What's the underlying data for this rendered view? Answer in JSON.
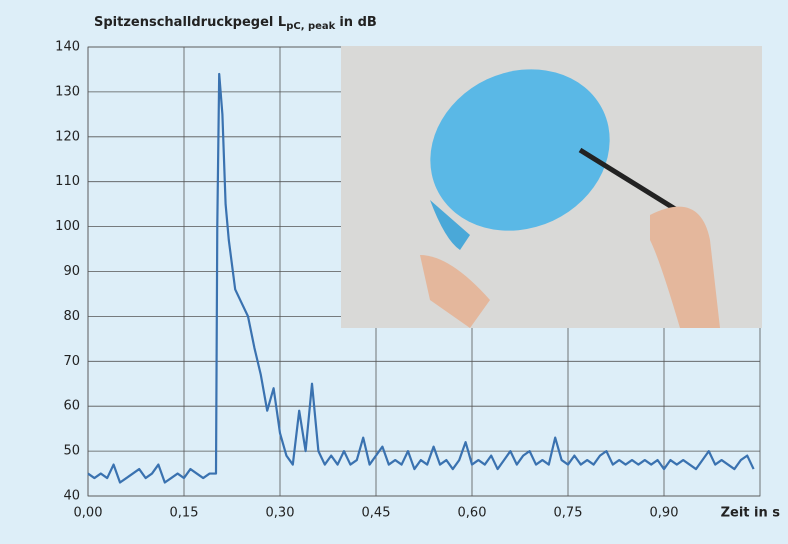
{
  "chart_data": {
    "type": "line",
    "ylabel": {
      "main": "Spitzenschalldruckpegel L",
      "sub": "pC, peak",
      "unit": "in dB"
    },
    "xlabel": "Zeit in s",
    "x": [
      0,
      0.01,
      0.02,
      0.03,
      0.04,
      0.05,
      0.06,
      0.07,
      0.08,
      0.09,
      0.1,
      0.11,
      0.12,
      0.13,
      0.14,
      0.15,
      0.16,
      0.17,
      0.18,
      0.19,
      0.2,
      0.202,
      0.205,
      0.21,
      0.215,
      0.22,
      0.23,
      0.24,
      0.25,
      0.26,
      0.27,
      0.28,
      0.29,
      0.3,
      0.31,
      0.32,
      0.33,
      0.34,
      0.35,
      0.36,
      0.37,
      0.38,
      0.39,
      0.4,
      0.41,
      0.42,
      0.43,
      0.44,
      0.45,
      0.46,
      0.47,
      0.48,
      0.49,
      0.5,
      0.51,
      0.52,
      0.53,
      0.54,
      0.55,
      0.56,
      0.57,
      0.58,
      0.59,
      0.6,
      0.61,
      0.62,
      0.63,
      0.64,
      0.65,
      0.66,
      0.67,
      0.68,
      0.69,
      0.7,
      0.71,
      0.72,
      0.73,
      0.74,
      0.75,
      0.76,
      0.77,
      0.78,
      0.79,
      0.8,
      0.81,
      0.82,
      0.83,
      0.84,
      0.85,
      0.86,
      0.87,
      0.88,
      0.89,
      0.9,
      0.91,
      0.92,
      0.93,
      0.94,
      0.95,
      0.96,
      0.97,
      0.98,
      0.99,
      1.0,
      1.01,
      1.02,
      1.03,
      1.04
    ],
    "series": [
      {
        "color": "#3a72b0",
        "values": [
          45,
          44,
          45,
          44,
          47,
          43,
          44,
          45,
          46,
          44,
          45,
          47,
          43,
          44,
          45,
          44,
          46,
          45,
          44,
          45,
          45,
          100,
          134,
          125,
          105,
          97,
          86,
          83,
          80,
          73,
          67,
          59,
          64,
          54,
          49,
          47,
          59,
          50,
          65,
          50,
          47,
          49,
          47,
          50,
          47,
          48,
          53,
          47,
          49,
          51,
          47,
          48,
          47,
          50,
          46,
          48,
          47,
          51,
          47,
          48,
          46,
          48,
          52,
          47,
          48,
          47,
          49,
          46,
          48,
          50,
          47,
          49,
          50,
          47,
          48,
          47,
          53,
          48,
          47,
          49,
          47,
          48,
          47,
          49,
          50,
          47,
          48,
          47,
          48,
          47,
          48,
          47,
          48,
          46,
          48,
          47,
          48,
          47,
          46,
          48,
          50,
          47,
          48,
          47,
          46,
          48,
          49,
          46
        ]
      }
    ],
    "xlim": [
      0,
      1.05
    ],
    "ylim": [
      40,
      140
    ],
    "xticks": [
      {
        "value": 0,
        "label": "0,00"
      },
      {
        "value": 0.15,
        "label": "0,15"
      },
      {
        "value": 0.3,
        "label": "0,30"
      },
      {
        "value": 0.45,
        "label": "0,45"
      },
      {
        "value": 0.6,
        "label": "0,60"
      },
      {
        "value": 0.75,
        "label": "0,75"
      },
      {
        "value": 0.9,
        "label": "0,90"
      }
    ],
    "yticks": [
      40,
      50,
      60,
      70,
      80,
      90,
      100,
      110,
      120,
      130,
      140
    ],
    "grid": true
  }
}
